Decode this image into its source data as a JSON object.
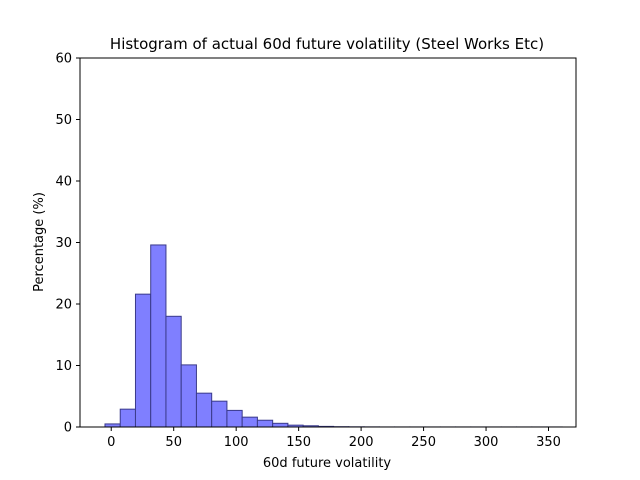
{
  "chart_data": {
    "type": "bar",
    "title": "Histogram of actual 60d future volatility (Steel Works Etc)",
    "xlabel": "60d future volatility",
    "ylabel": "Percentage (%)",
    "xlim": [
      -25,
      372
    ],
    "ylim": [
      0,
      60
    ],
    "xticks": [
      "0",
      "50",
      "100",
      "150",
      "200",
      "250",
      "300",
      "350"
    ],
    "yticks": [
      "0",
      "10",
      "20",
      "30",
      "40",
      "50",
      "60"
    ],
    "bin_edges": [
      -5,
      7.2,
      19.4,
      31.6,
      43.8,
      56,
      68.2,
      80.4,
      92.6,
      104.8,
      117,
      129.2,
      141.4,
      153.6,
      165.8,
      178,
      190.2,
      202.4,
      214.6,
      226.8,
      239,
      251.2,
      263.4,
      275.6,
      287.8,
      300,
      312.2,
      324.4,
      336.6,
      348.8,
      361
    ],
    "values": [
      0.5,
      2.9,
      21.6,
      29.6,
      18.0,
      10.1,
      5.5,
      4.2,
      2.7,
      1.6,
      1.1,
      0.6,
      0.3,
      0.2,
      0.1,
      0.05,
      0.03,
      0.02,
      0.01,
      0.01,
      0.01,
      0.01,
      0.01,
      0.01,
      0.01,
      0.01,
      0.01,
      0.01,
      0.01,
      0.01
    ],
    "bar_color": "#7f7fff",
    "edge_color": "#3a3a8a",
    "grid": false,
    "legend": "none"
  }
}
